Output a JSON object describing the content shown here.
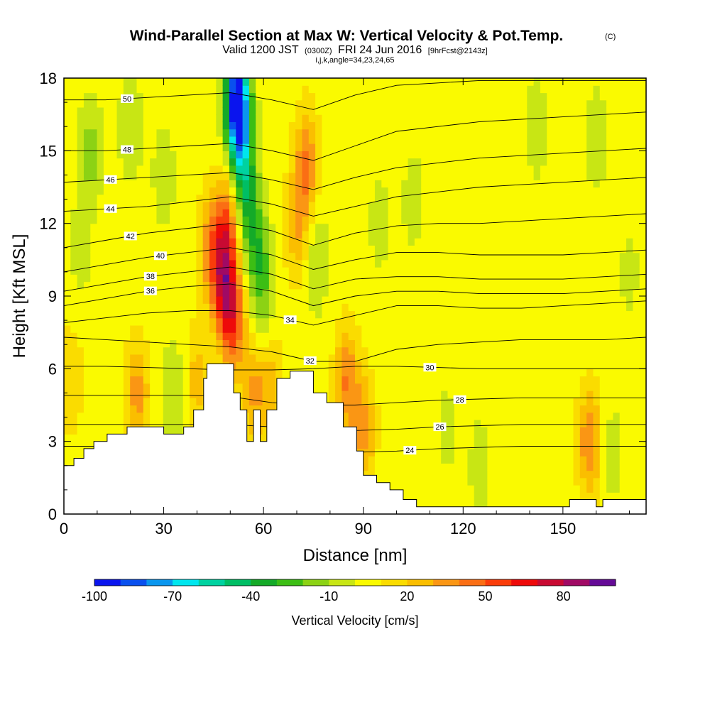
{
  "header": {
    "title": "Wind-Parallel Section at Max W: Vertical Velocity & Pot.Temp.",
    "title_mark": "(C)",
    "valid_prefix": "Valid 1200 JST",
    "valid_utc": "(0300Z)",
    "valid_date": "FRI 24 Jun 2016",
    "fcst": "[9hrFcst@2143z]",
    "grid_info": "i,j,k,angle=34,23,24,65"
  },
  "chart_data": {
    "type": "heatmap",
    "xlabel": "Distance [nm]",
    "ylabel": "Height [Kft MSL]",
    "xlim": [
      0,
      175
    ],
    "ylim": [
      0,
      18
    ],
    "x_ticks": [
      "0",
      "30",
      "60",
      "90",
      "120",
      "150"
    ],
    "x_tick_values": [
      0,
      30,
      60,
      90,
      120,
      150
    ],
    "y_ticks": [
      "0",
      "3",
      "6",
      "9",
      "12",
      "15",
      "18"
    ],
    "y_tick_values": [
      0,
      3,
      6,
      9,
      12,
      15,
      18
    ],
    "colorbar": {
      "label": "Vertical Velocity [cm/s]",
      "ticks": [
        "-100",
        "-70",
        "-40",
        "-10",
        "20",
        "50",
        "80"
      ],
      "range": [
        -100,
        100
      ],
      "colors": [
        "#0a14ee",
        "#0a50ee",
        "#0a96ee",
        "#00e6ee",
        "#00d2a0",
        "#00be64",
        "#14aa28",
        "#3cbe14",
        "#8cd214",
        "#c8e614",
        "#fafa00",
        "#fadc00",
        "#fabe00",
        "#fa9614",
        "#fa6e14",
        "#fa3c0a",
        "#ee0a0a",
        "#c80a32",
        "#a00a64",
        "#640a96"
      ]
    },
    "background_velocity": 5,
    "velocity_features": [
      {
        "x": 52,
        "y": 17.3,
        "w": -90
      },
      {
        "x": 53,
        "y": 15.5,
        "w": -55
      },
      {
        "x": 55,
        "y": 13.0,
        "w": -30
      },
      {
        "x": 58,
        "y": 11.0,
        "w": -25
      },
      {
        "x": 60,
        "y": 9.0,
        "w": -20
      },
      {
        "x": 49,
        "y": 12.0,
        "w": 40
      },
      {
        "x": 48,
        "y": 9.5,
        "w": 55
      },
      {
        "x": 51,
        "y": 8.0,
        "w": 45
      },
      {
        "x": 44,
        "y": 11.0,
        "w": 30
      },
      {
        "x": 73,
        "y": 14.5,
        "w": 35
      },
      {
        "x": 70,
        "y": 12.0,
        "w": 25
      },
      {
        "x": 76,
        "y": 10.5,
        "w": -15
      },
      {
        "x": 8,
        "y": 15.0,
        "w": -20
      },
      {
        "x": 20,
        "y": 16.0,
        "w": -15
      },
      {
        "x": 30,
        "y": 14.0,
        "w": -12
      },
      {
        "x": 5,
        "y": 11.0,
        "w": -10
      },
      {
        "x": 22,
        "y": 5.0,
        "w": 30
      },
      {
        "x": 33,
        "y": 5.0,
        "w": -15
      },
      {
        "x": 40,
        "y": 5.5,
        "w": 20
      },
      {
        "x": 57,
        "y": 5.0,
        "w": 25
      },
      {
        "x": 62,
        "y": 5.5,
        "w": 20
      },
      {
        "x": 85,
        "y": 5.5,
        "w": 35
      },
      {
        "x": 90,
        "y": 3.5,
        "w": 30
      },
      {
        "x": 95,
        "y": 12.0,
        "w": -10
      },
      {
        "x": 105,
        "y": 13.0,
        "w": -10
      },
      {
        "x": 115,
        "y": 3.5,
        "w": -8
      },
      {
        "x": 125,
        "y": 2.0,
        "w": -10
      },
      {
        "x": 135,
        "y": 5.0,
        "w": -5
      },
      {
        "x": 142,
        "y": 16.0,
        "w": -12
      },
      {
        "x": 160,
        "y": 15.5,
        "w": -12
      },
      {
        "x": 158,
        "y": 3.0,
        "w": 35
      },
      {
        "x": 165,
        "y": 2.5,
        "w": -10
      },
      {
        "x": 170,
        "y": 10.0,
        "w": -8
      },
      {
        "x": 2,
        "y": 5.5,
        "w": 15
      }
    ],
    "terrain": [
      [
        0,
        2.0
      ],
      [
        3,
        2.3
      ],
      [
        6,
        2.7
      ],
      [
        9,
        3.0
      ],
      [
        13,
        3.3
      ],
      [
        19,
        3.6
      ],
      [
        25,
        3.6
      ],
      [
        30,
        3.3
      ],
      [
        36,
        3.6
      ],
      [
        39,
        4.3
      ],
      [
        42,
        5.6
      ],
      [
        43,
        6.2
      ],
      [
        48,
        6.2
      ],
      [
        51,
        5.0
      ],
      [
        53,
        4.3
      ],
      [
        55,
        3.0
      ],
      [
        57,
        4.3
      ],
      [
        59,
        3.0
      ],
      [
        61,
        4.3
      ],
      [
        64,
        5.6
      ],
      [
        68,
        5.9
      ],
      [
        73,
        5.9
      ],
      [
        75,
        5.0
      ],
      [
        79,
        4.6
      ],
      [
        84,
        3.6
      ],
      [
        88,
        2.6
      ],
      [
        90,
        1.6
      ],
      [
        94,
        1.3
      ],
      [
        98,
        1.0
      ],
      [
        102,
        0.6
      ],
      [
        106,
        0.3
      ],
      [
        118,
        0.3
      ],
      [
        130,
        0.3
      ],
      [
        145,
        0.3
      ],
      [
        152,
        0.6
      ],
      [
        158,
        0.6
      ],
      [
        160,
        0.3
      ],
      [
        162,
        0.6
      ],
      [
        175,
        0.6
      ]
    ],
    "isotherms": [
      {
        "label": "24",
        "y": [
          2.8,
          2.8,
          2.8,
          2.8,
          2.8,
          2.8,
          2.6,
          2.55,
          2.6,
          2.7,
          2.75,
          2.8,
          2.8,
          2.8,
          2.8
        ],
        "label_x": 104
      },
      {
        "label": "26",
        "y": [
          3.7,
          3.7,
          3.7,
          3.7,
          3.7,
          3.6,
          3.5,
          3.45,
          3.5,
          3.6,
          3.65,
          3.7,
          3.7,
          3.7,
          3.7
        ],
        "label_x": 113
      },
      {
        "label": "28",
        "y": [
          4.9,
          4.9,
          4.9,
          4.9,
          4.85,
          4.6,
          4.5,
          4.5,
          4.6,
          4.7,
          4.75,
          4.8,
          4.8,
          4.8,
          4.8
        ],
        "label_x": 119
      },
      {
        "label": "30",
        "y": [
          6.1,
          6.1,
          6.05,
          6.0,
          5.95,
          5.95,
          6.0,
          6.1,
          6.1,
          6.05,
          6.0,
          6.0,
          6.0,
          6.0,
          6.0
        ],
        "label_x": 110
      },
      {
        "label": "32",
        "y": [
          7.3,
          7.2,
          7.1,
          7.0,
          6.9,
          6.7,
          6.3,
          6.3,
          6.8,
          7.0,
          7.1,
          7.2,
          7.2,
          7.2,
          7.3
        ],
        "label_x": 74
      },
      {
        "label": "34",
        "y": [
          7.9,
          8.1,
          8.3,
          8.4,
          8.4,
          8.2,
          7.8,
          8.2,
          8.6,
          8.6,
          8.5,
          8.5,
          8.6,
          8.7,
          8.8
        ],
        "label_x": 68
      },
      {
        "label": "36",
        "y": [
          8.6,
          8.9,
          9.2,
          9.4,
          9.5,
          9.2,
          8.6,
          9.0,
          9.2,
          9.2,
          9.1,
          9.1,
          9.1,
          9.2,
          9.3
        ],
        "label_x": 26
      },
      {
        "label": "38",
        "y": [
          9.2,
          9.5,
          9.8,
          10.0,
          10.2,
          9.9,
          9.3,
          9.7,
          9.8,
          9.8,
          9.7,
          9.7,
          9.7,
          9.8,
          9.9
        ],
        "label_x": 26
      },
      {
        "label": "40",
        "y": [
          10.0,
          10.3,
          10.6,
          10.8,
          11.0,
          10.7,
          10.1,
          10.5,
          10.8,
          10.8,
          10.7,
          10.7,
          10.7,
          10.8,
          10.9
        ],
        "label_x": 29
      },
      {
        "label": "42",
        "y": [
          11.0,
          11.3,
          11.6,
          11.8,
          12.0,
          11.7,
          11.1,
          11.6,
          11.9,
          12.0,
          12.0,
          12.1,
          12.2,
          12.3,
          12.4
        ],
        "label_x": 20
      },
      {
        "label": "44",
        "y": [
          12.5,
          12.6,
          12.7,
          12.9,
          13.1,
          12.8,
          12.3,
          12.7,
          13.1,
          13.3,
          13.5,
          13.6,
          13.7,
          13.8,
          13.9
        ],
        "label_x": 14
      },
      {
        "label": "46",
        "y": [
          13.7,
          13.8,
          13.9,
          14.0,
          14.1,
          13.8,
          13.4,
          13.9,
          14.3,
          14.5,
          14.7,
          14.8,
          14.9,
          15.0,
          15.1
        ],
        "label_x": 14
      },
      {
        "label": "48",
        "y": [
          15.0,
          15.0,
          15.1,
          15.2,
          15.3,
          15.0,
          14.6,
          15.2,
          15.8,
          16.0,
          16.2,
          16.3,
          16.4,
          16.5,
          16.6
        ],
        "label_x": 19
      },
      {
        "label": "50",
        "y": [
          17.1,
          17.1,
          17.2,
          17.3,
          17.4,
          17.1,
          16.7,
          17.3,
          17.7,
          17.8,
          17.9,
          17.9,
          17.9,
          17.9,
          17.9
        ],
        "label_x": 19
      }
    ]
  }
}
